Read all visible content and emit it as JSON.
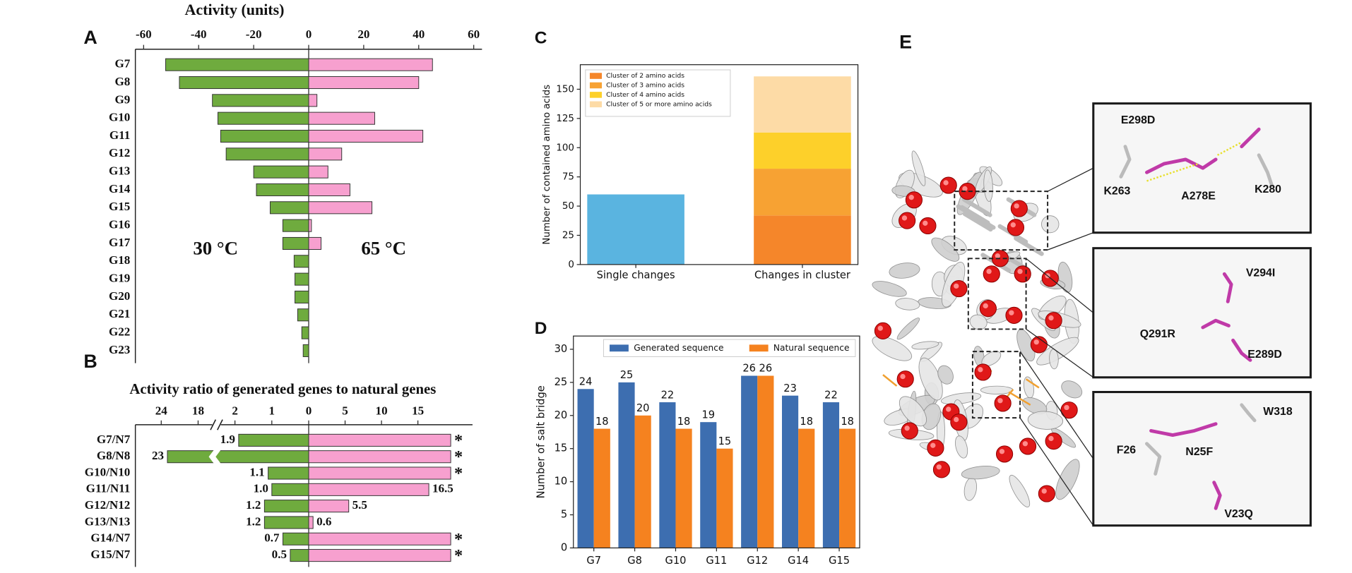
{
  "chart_data": [
    {
      "type": "bar",
      "orientation": "horizontal",
      "panel_label": "A",
      "title": "Activity (units)",
      "categories": [
        "G7",
        "G8",
        "G9",
        "G10",
        "G11",
        "G12",
        "G13",
        "G14",
        "G15",
        "G16",
        "G17",
        "G18",
        "G19",
        "G20",
        "G21",
        "G22",
        "G23"
      ],
      "series": [
        {
          "name": "30 °C",
          "color": "#6fab3e",
          "values": [
            -52,
            -47,
            -35,
            -33,
            -32,
            -30,
            -20,
            -19,
            -14,
            -9.4,
            -9.4,
            -5.3,
            -5,
            -5,
            -4,
            -2.5,
            -2
          ]
        },
        {
          "name": "65 °C",
          "color": "#f7a0cf",
          "values": [
            45,
            40,
            3,
            24,
            41.5,
            12,
            7,
            15,
            23,
            1,
            4.5,
            0,
            0,
            0,
            0,
            0,
            0
          ]
        }
      ],
      "xlim": [
        -63,
        63
      ],
      "xticks": [
        -60,
        -40,
        -20,
        0,
        20,
        40,
        60
      ]
    },
    {
      "type": "bar",
      "orientation": "horizontal",
      "panel_label": "B",
      "title": "Activity ratio of generated genes to natural genes",
      "categories": [
        "G7/N7",
        "G8/N8",
        "G10/N10",
        "G11/N11",
        "G12/N12",
        "G13/N13",
        "G14/N7",
        "G15/N7"
      ],
      "series": [
        {
          "color": "#6fab3e",
          "values": [
            1.9,
            23,
            1.1,
            1.0,
            1.2,
            1.2,
            0.7,
            0.5
          ],
          "value_labels": [
            "1.9",
            "23",
            "1.1",
            "1.0",
            "1.2",
            "1.2",
            "0.7",
            "0.5"
          ]
        },
        {
          "color": "#f7a0cf",
          "values": [
            null,
            null,
            null,
            16.5,
            5.5,
            0.6,
            null,
            null
          ],
          "value_labels": [
            "*",
            "*",
            "*",
            "16.5",
            "5.5",
            "0.6",
            "*",
            "*"
          ]
        }
      ],
      "xticks_left": [
        24,
        18,
        2,
        1
      ],
      "xticks_right": [
        0,
        5,
        10,
        15
      ],
      "xlim_right": [
        0,
        22.5
      ],
      "axis_break": true
    },
    {
      "type": "bar",
      "stacked": true,
      "panel_label": "C",
      "y_label": "Number of contained amino acids",
      "categories": [
        "Single changes",
        "Changes in cluster"
      ],
      "series": [
        {
          "color": "#5ab4e0",
          "values": [
            60,
            null
          ]
        },
        {
          "name": "Cluster of 2 amino acids",
          "color": "#f5862a",
          "values": [
            null,
            42
          ]
        },
        {
          "name": "Cluster of 3 amino acids",
          "color": "#f7a233",
          "values": [
            null,
            40
          ]
        },
        {
          "name": "Cluster of 4 amino acids",
          "color": "#fdd02a",
          "values": [
            null,
            31
          ]
        },
        {
          "name": "Cluster of 5 or more amino acids",
          "color": "#fddba6",
          "values": [
            null,
            48
          ]
        }
      ],
      "ylim": [
        0,
        171
      ],
      "yticks": [
        0,
        25,
        50,
        75,
        100,
        125,
        150
      ],
      "legend": "upper left"
    },
    {
      "type": "bar",
      "panel_label": "D",
      "y_label": "Number of salt bridge",
      "categories": [
        "G7",
        "G8",
        "G10",
        "G11",
        "G12",
        "G14",
        "G15"
      ],
      "series": [
        {
          "name": "Generated sequence",
          "color": "#3d6eb0",
          "values": [
            24,
            25,
            22,
            19,
            26,
            23,
            22
          ]
        },
        {
          "name": "Natural sequence",
          "color": "#f5821f",
          "values": [
            18,
            20,
            18,
            15,
            26,
            18,
            18
          ]
        }
      ],
      "ylim": [
        0,
        32
      ],
      "yticks": [
        0,
        5,
        10,
        15,
        20,
        25,
        30
      ],
      "data_labels": true,
      "legend": "upper center"
    }
  ],
  "panel_e": {
    "panel_label": "E",
    "insets": [
      [
        "E298D",
        "K263",
        "A278E",
        "K280"
      ],
      [
        "V294I",
        "Q291R",
        "E289D"
      ],
      [
        "W318",
        "F26",
        "N25F",
        "V23Q"
      ]
    ]
  }
}
